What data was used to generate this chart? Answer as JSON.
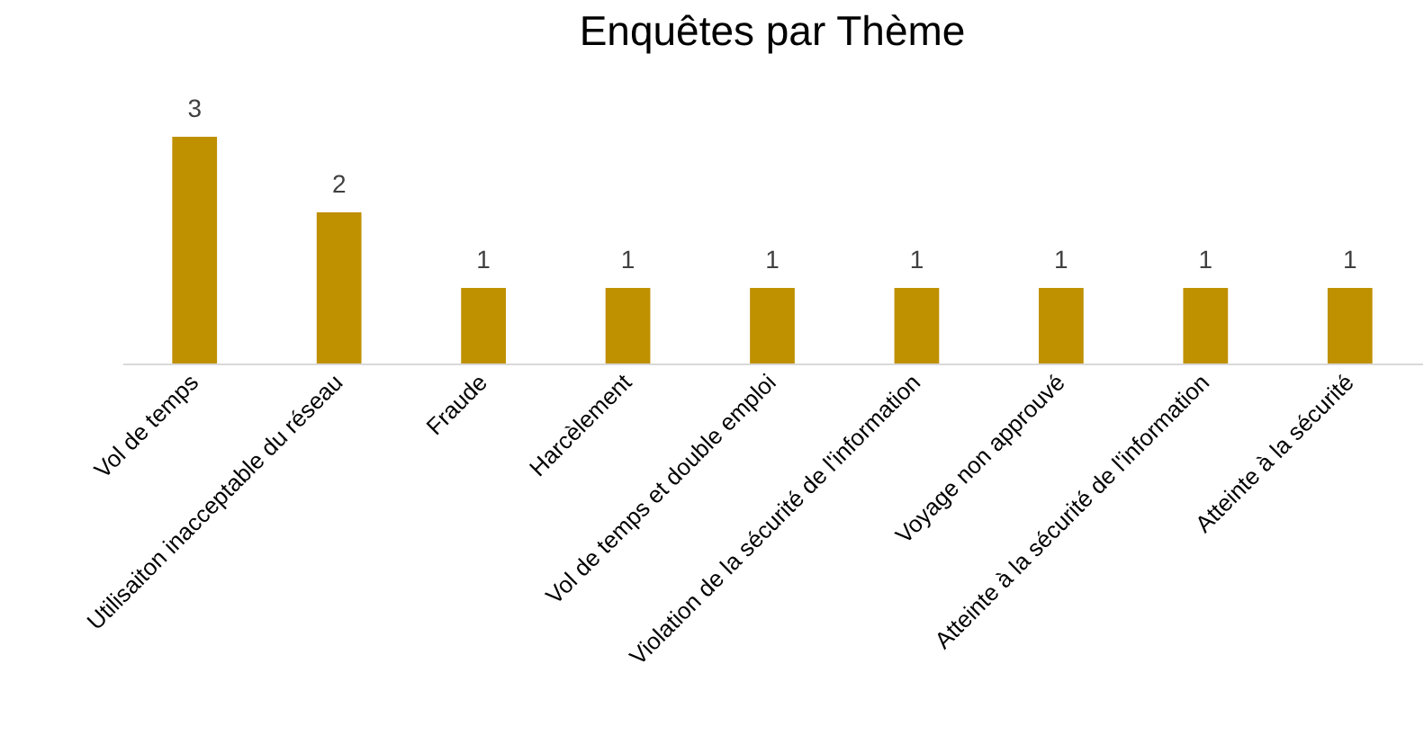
{
  "chart_data": {
    "type": "bar",
    "title": "Enquêtes par Thème",
    "categories": [
      "Vol de temps",
      "Utilisaiton inacceptable du réseau",
      "Fraude",
      "Harcèlement",
      "Vol de temps et double emploi",
      "Violation de la sécurité de l'information",
      "Voyage non approuvé",
      "Atteinte à  la sécurité de l'information",
      "Atteinte à  la sécurité"
    ],
    "values": [
      3,
      2,
      1,
      1,
      1,
      1,
      1,
      1,
      1
    ],
    "color": "#bf9000",
    "data_labels": true
  }
}
